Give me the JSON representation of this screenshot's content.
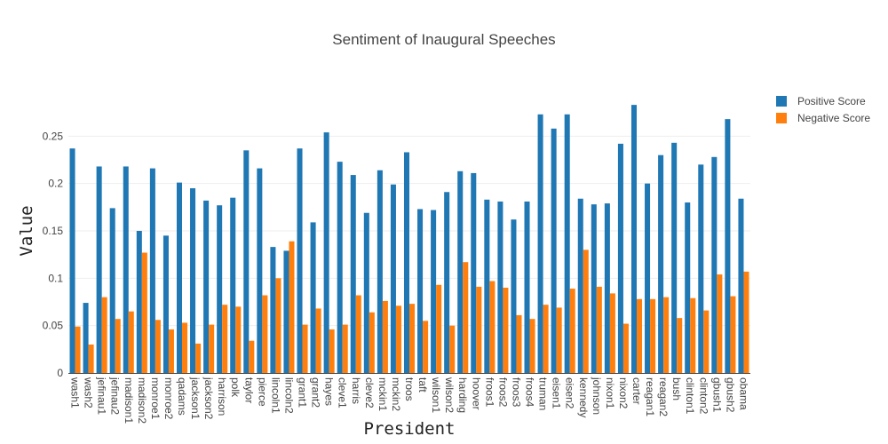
{
  "chart_data": {
    "type": "bar",
    "title": "Sentiment of Inaugural Speeches",
    "xlabel": "President",
    "ylabel": "Value",
    "ylim": [
      0,
      0.3
    ],
    "yticks": [
      0,
      0.05,
      0.1,
      0.15,
      0.2,
      0.25
    ],
    "ytick_labels": [
      "0",
      "0.05",
      "0.1",
      "0.15",
      "0.2",
      "0.25"
    ],
    "grid": true,
    "legend_position": "top-right",
    "categories": [
      "wash1",
      "wash2",
      "jefinau1",
      "jefinau2",
      "madison1",
      "madison2",
      "monroe1",
      "monroe2",
      "qadams",
      "jackson1",
      "jackson2",
      "harrison",
      "polk",
      "taylor",
      "pierce",
      "lincoln1",
      "lincoln2",
      "grant1",
      "grant2",
      "hayes",
      "cleve1",
      "harris",
      "cleve2",
      "mckin1",
      "mckin2",
      "troos",
      "taft",
      "wilson1",
      "wilson2",
      "harding",
      "hoover",
      "froos1",
      "froos2",
      "froos3",
      "froos4",
      "truman",
      "eisen1",
      "eisen2",
      "kennedy",
      "johnson",
      "nixon1",
      "nixon2",
      "carter",
      "reagan1",
      "reagan2",
      "bush",
      "clinton1",
      "clinton2",
      "gbush1",
      "gbush2",
      "obama"
    ],
    "series": [
      {
        "name": "Positive Score",
        "color": "#1f77b4",
        "values": [
          0.237,
          0.074,
          0.218,
          0.174,
          0.218,
          0.15,
          0.216,
          0.145,
          0.201,
          0.195,
          0.182,
          0.177,
          0.185,
          0.235,
          0.216,
          0.133,
          0.129,
          0.237,
          0.159,
          0.254,
          0.223,
          0.209,
          0.169,
          0.214,
          0.199,
          0.233,
          0.173,
          0.172,
          0.191,
          0.213,
          0.211,
          0.183,
          0.181,
          0.162,
          0.181,
          0.273,
          0.258,
          0.273,
          0.184,
          0.178,
          0.179,
          0.242,
          0.283,
          0.2,
          0.23,
          0.243,
          0.18,
          0.22,
          0.228,
          0.268,
          0.184
        ]
      },
      {
        "name": "Negative Score",
        "color": "#ff7f0e",
        "values": [
          0.049,
          0.03,
          0.08,
          0.057,
          0.065,
          0.127,
          0.056,
          0.046,
          0.053,
          0.031,
          0.051,
          0.072,
          0.07,
          0.034,
          0.082,
          0.1,
          0.139,
          0.051,
          0.068,
          0.046,
          0.051,
          0.082,
          0.064,
          0.076,
          0.071,
          0.073,
          0.055,
          0.093,
          0.05,
          0.117,
          0.091,
          0.097,
          0.09,
          0.061,
          0.057,
          0.072,
          0.069,
          0.089,
          0.13,
          0.091,
          0.084,
          0.052,
          0.078,
          0.078,
          0.08,
          0.058,
          0.079,
          0.066,
          0.104,
          0.081,
          0.107
        ]
      }
    ]
  }
}
